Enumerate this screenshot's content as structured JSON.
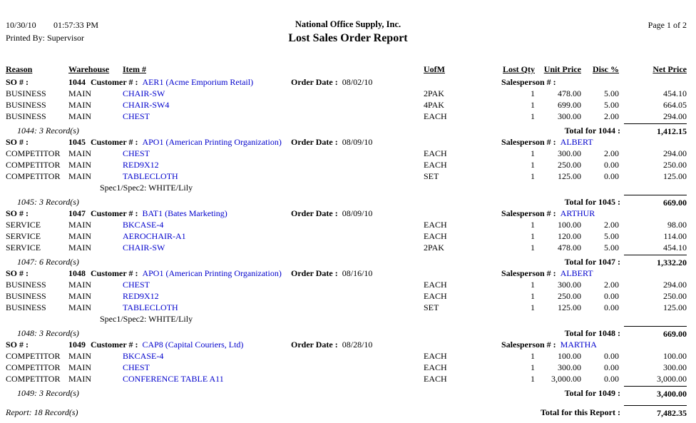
{
  "colors": {
    "link": "#0000CC",
    "text": "#000000",
    "background": "#FFFFFF"
  },
  "header": {
    "date": "10/30/10",
    "time": "01:57:33 PM",
    "printed_by": "Printed By: Supervisor",
    "company": "National Office Supply, Inc.",
    "title": "Lost Sales Order Report",
    "page": "Page 1 of 2"
  },
  "columns": {
    "reason": "Reason",
    "warehouse": "Warehouse",
    "item": "Item #",
    "uofm": "UofM",
    "lost_qty": "Lost Qty",
    "unit_price": "Unit Price",
    "disc": "Disc %",
    "net_price": "Net Price"
  },
  "labels": {
    "so": "SO # :",
    "customer": "Customer # :",
    "order_date": "Order Date :",
    "salesperson": "Salesperson # :"
  },
  "orders": [
    {
      "so": "1044",
      "customer": "AER1 (Acme Emporium Retail)",
      "order_date": "08/02/10",
      "salesperson": "",
      "rows": [
        {
          "reason": "BUSINESS",
          "warehouse": "MAIN",
          "item": "CHAIR-SW",
          "uofm": "2PAK",
          "lost_qty": "1",
          "unit_price": "478.00",
          "disc": "5.00",
          "net_price": "454.10"
        },
        {
          "reason": "BUSINESS",
          "warehouse": "MAIN",
          "item": "CHAIR-SW4",
          "uofm": "4PAK",
          "lost_qty": "1",
          "unit_price": "699.00",
          "disc": "5.00",
          "net_price": "664.05"
        },
        {
          "reason": "BUSINESS",
          "warehouse": "MAIN",
          "item": "CHEST",
          "uofm": "EACH",
          "lost_qty": "1",
          "unit_price": "300.00",
          "disc": "2.00",
          "net_price": "294.00"
        }
      ],
      "spec": "",
      "record_note": "1044: 3 Record(s)",
      "total_label": "Total for 1044 :",
      "total": "1,412.15"
    },
    {
      "so": "1045",
      "customer": "APO1 (American Printing Organization)",
      "order_date": "08/09/10",
      "salesperson": "ALBERT",
      "rows": [
        {
          "reason": "COMPETITOR",
          "warehouse": "MAIN",
          "item": "CHEST",
          "uofm": "EACH",
          "lost_qty": "1",
          "unit_price": "300.00",
          "disc": "2.00",
          "net_price": "294.00"
        },
        {
          "reason": "COMPETITOR",
          "warehouse": "MAIN",
          "item": "RED9X12",
          "uofm": "EACH",
          "lost_qty": "1",
          "unit_price": "250.00",
          "disc": "0.00",
          "net_price": "250.00"
        },
        {
          "reason": "COMPETITOR",
          "warehouse": "MAIN",
          "item": "TABLECLOTH",
          "uofm": "SET",
          "lost_qty": "1",
          "unit_price": "125.00",
          "disc": "0.00",
          "net_price": "125.00"
        }
      ],
      "spec": "Spec1/Spec2: WHITE/Lily",
      "record_note": "1045: 3 Record(s)",
      "total_label": "Total for 1045 :",
      "total": "669.00"
    },
    {
      "so": "1047",
      "customer": "BAT1 (Bates Marketing)",
      "order_date": "08/09/10",
      "salesperson": "ARTHUR",
      "rows": [
        {
          "reason": "SERVICE",
          "warehouse": "MAIN",
          "item": "BKCASE-4",
          "uofm": "EACH",
          "lost_qty": "1",
          "unit_price": "100.00",
          "disc": "2.00",
          "net_price": "98.00"
        },
        {
          "reason": "SERVICE",
          "warehouse": "MAIN",
          "item": "AEROCHAIR-A1",
          "uofm": "EACH",
          "lost_qty": "1",
          "unit_price": "120.00",
          "disc": "5.00",
          "net_price": "114.00"
        },
        {
          "reason": "SERVICE",
          "warehouse": "MAIN",
          "item": "CHAIR-SW",
          "uofm": "2PAK",
          "lost_qty": "1",
          "unit_price": "478.00",
          "disc": "5.00",
          "net_price": "454.10"
        }
      ],
      "spec": "",
      "record_note": "1047: 6 Record(s)",
      "total_label": "Total for 1047 :",
      "total": "1,332.20"
    },
    {
      "so": "1048",
      "customer": "APO1 (American Printing Organization)",
      "order_date": "08/16/10",
      "salesperson": "ALBERT",
      "rows": [
        {
          "reason": "BUSINESS",
          "warehouse": "MAIN",
          "item": "CHEST",
          "uofm": "EACH",
          "lost_qty": "1",
          "unit_price": "300.00",
          "disc": "2.00",
          "net_price": "294.00"
        },
        {
          "reason": "BUSINESS",
          "warehouse": "MAIN",
          "item": "RED9X12",
          "uofm": "EACH",
          "lost_qty": "1",
          "unit_price": "250.00",
          "disc": "0.00",
          "net_price": "250.00"
        },
        {
          "reason": "BUSINESS",
          "warehouse": "MAIN",
          "item": "TABLECLOTH",
          "uofm": "SET",
          "lost_qty": "1",
          "unit_price": "125.00",
          "disc": "0.00",
          "net_price": "125.00"
        }
      ],
      "spec": "Spec1/Spec2: WHITE/Lily",
      "record_note": "1048: 3 Record(s)",
      "total_label": "Total for 1048 :",
      "total": "669.00"
    },
    {
      "so": "1049",
      "customer": "CAP8 (Capital Couriers, Ltd)",
      "order_date": "08/28/10",
      "salesperson": "MARTHA",
      "rows": [
        {
          "reason": "COMPETITOR",
          "warehouse": "MAIN",
          "item": "BKCASE-4",
          "uofm": "EACH",
          "lost_qty": "1",
          "unit_price": "100.00",
          "disc": "0.00",
          "net_price": "100.00"
        },
        {
          "reason": "COMPETITOR",
          "warehouse": "MAIN",
          "item": "CHEST",
          "uofm": "EACH",
          "lost_qty": "1",
          "unit_price": "300.00",
          "disc": "0.00",
          "net_price": "300.00"
        },
        {
          "reason": "COMPETITOR",
          "warehouse": "MAIN",
          "item": "CONFERENCE TABLE A11",
          "uofm": "EACH",
          "lost_qty": "1",
          "unit_price": "3,000.00",
          "disc": "0.00",
          "net_price": "3,000.00"
        }
      ],
      "spec": "",
      "record_note": "1049: 3 Record(s)",
      "total_label": "Total for 1049 :",
      "total": "3,400.00"
    }
  ],
  "footer": {
    "record_note": "Report: 18 Record(s)",
    "total_label": "Total for this Report :",
    "total": "7,482.35"
  }
}
